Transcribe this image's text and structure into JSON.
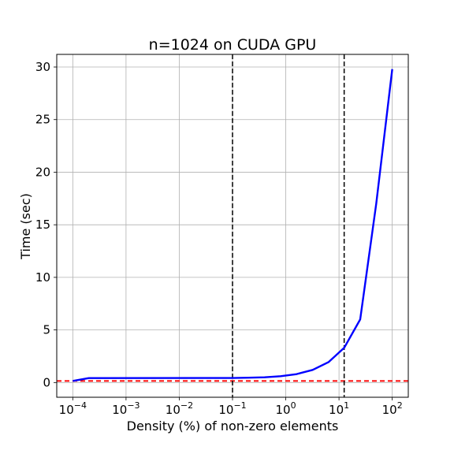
{
  "chart_data": {
    "type": "line",
    "title": "n=1024 on CUDA GPU",
    "xlabel": "Density (%) of non-zero elements",
    "ylabel": "Time (sec)",
    "x_scale": "log",
    "xlim": [
      5e-05,
      200
    ],
    "ylim": [
      -1.4,
      31.2
    ],
    "grid": true,
    "x_ticks": [
      {
        "value": 0.0001,
        "base": "10",
        "exp": "−4"
      },
      {
        "value": 0.001,
        "base": "10",
        "exp": "−3"
      },
      {
        "value": 0.01,
        "base": "10",
        "exp": "−2"
      },
      {
        "value": 0.1,
        "base": "10",
        "exp": "−1"
      },
      {
        "value": 1,
        "base": "10",
        "exp": "0"
      },
      {
        "value": 10,
        "base": "10",
        "exp": "1"
      },
      {
        "value": 100,
        "base": "10",
        "exp": "2"
      }
    ],
    "y_ticks": [
      {
        "value": 0,
        "label": "0"
      },
      {
        "value": 5,
        "label": "5"
      },
      {
        "value": 10,
        "label": "10"
      },
      {
        "value": 15,
        "label": "15"
      },
      {
        "value": 20,
        "label": "20"
      },
      {
        "value": 25,
        "label": "25"
      },
      {
        "value": 30,
        "label": "30"
      }
    ],
    "series": [
      {
        "color": "#0000ff",
        "x": [
          0.0001,
          0.0002,
          0.1,
          0.2,
          0.4,
          0.8,
          1.6,
          3.2,
          6.4,
          12.5,
          25,
          50,
          100
        ],
        "y": [
          0.15,
          0.42,
          0.43,
          0.46,
          0.5,
          0.6,
          0.8,
          1.2,
          1.95,
          3.3,
          6.0,
          17.0,
          29.8
        ]
      }
    ],
    "vertical_lines": [
      {
        "x": 0.1,
        "style": "dashed",
        "color": "#000000"
      },
      {
        "x": 12.5,
        "style": "dashed",
        "color": "#000000"
      }
    ],
    "horizontal_lines": [
      {
        "y": 0.15,
        "style": "dashed",
        "color": "#ff0000"
      }
    ]
  }
}
